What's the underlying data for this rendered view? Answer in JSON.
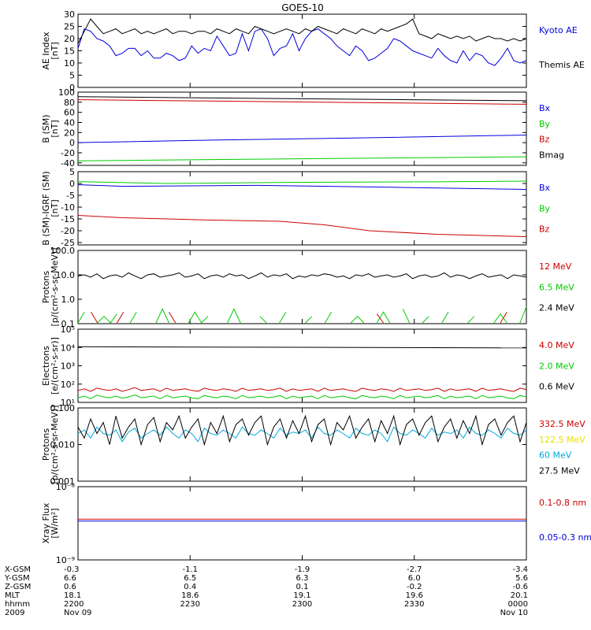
{
  "figure": {
    "title": "GOES-10"
  },
  "chart_data": [
    {
      "type": "line",
      "ylabel": [
        "AE Index",
        "[nT]"
      ],
      "ylim": [
        0,
        30
      ],
      "yticks": [
        "0",
        "5",
        "10",
        "15",
        "20",
        "25",
        "30"
      ],
      "series": [
        {
          "name": "Kyoto AE",
          "color": "#0000dd",
          "values": [
            16,
            24,
            23,
            20,
            19,
            17,
            13,
            14,
            16,
            16,
            13,
            15,
            12,
            12,
            14,
            13,
            11,
            12,
            17,
            14,
            16,
            15,
            21,
            17,
            13,
            14,
            22,
            15,
            23,
            24,
            20,
            13,
            16,
            17,
            22,
            15,
            20,
            23,
            24,
            22,
            20,
            17,
            15,
            13,
            17,
            15,
            11,
            12,
            14,
            16,
            20,
            19,
            17,
            15,
            14,
            13,
            12,
            16,
            13,
            11,
            10,
            15,
            11,
            14,
            13,
            10,
            9,
            12,
            16,
            11,
            10,
            11
          ]
        },
        {
          "name": "Themis AE",
          "color": "#000000",
          "values": [
            18,
            23,
            28,
            25,
            22,
            23,
            24,
            22,
            23,
            24,
            22,
            23,
            22,
            23,
            24,
            22,
            23,
            23,
            22,
            23,
            23,
            22,
            24,
            23,
            22,
            24,
            23,
            22,
            25,
            24,
            23,
            22,
            23,
            24,
            23,
            22,
            24,
            23,
            25,
            24,
            23,
            22,
            24,
            23,
            22,
            24,
            23,
            22,
            24,
            23,
            24,
            25,
            26,
            28,
            22,
            21,
            20,
            22,
            21,
            20,
            21,
            20,
            21,
            19,
            20,
            21,
            20,
            20,
            19,
            20,
            19,
            20
          ]
        }
      ]
    },
    {
      "type": "line",
      "ylabel": [
        "B (SM)",
        "[nT]"
      ],
      "ylim": [
        -45,
        100
      ],
      "yticks": [
        "-40",
        "-20",
        "0",
        "20",
        "40",
        "60",
        "80",
        "100"
      ],
      "series": [
        {
          "name": "Bx",
          "color": "#0000dd",
          "x": [
            0,
            30,
            60,
            100
          ],
          "values": [
            0,
            5,
            9,
            15
          ]
        },
        {
          "name": "By",
          "color": "#00cc00",
          "x": [
            0,
            100
          ],
          "values": [
            -36,
            -28
          ]
        },
        {
          "name": "Bz",
          "color": "#cc0000",
          "x": [
            0,
            100
          ],
          "values": [
            85,
            76
          ]
        },
        {
          "name": "Bmag",
          "color": "#000000",
          "x": [
            0,
            100
          ],
          "values": [
            91,
            83
          ]
        }
      ]
    },
    {
      "type": "line",
      "ylabel": [
        "B (SM)-IGRF (SM)",
        "[nT]"
      ],
      "ylim": [
        -26,
        5
      ],
      "yticks": [
        "-25",
        "-20",
        "-15",
        "-10",
        "-5",
        "0",
        "5"
      ],
      "series": [
        {
          "name": "Bx",
          "color": "#0000dd",
          "x": [
            0,
            10,
            40,
            70,
            100
          ],
          "values": [
            -0.5,
            -1.2,
            -0.8,
            -1.6,
            -2.5
          ]
        },
        {
          "name": "By",
          "color": "#00cc00",
          "x": [
            0,
            20,
            50,
            80,
            100
          ],
          "values": [
            0.8,
            0.0,
            0.5,
            0.7,
            1.0
          ]
        },
        {
          "name": "Bz",
          "color": "#cc0000",
          "x": [
            0,
            10,
            30,
            45,
            55,
            65,
            80,
            100
          ],
          "values": [
            -13.5,
            -14.5,
            -15.5,
            -16,
            -17.5,
            -20,
            -21.5,
            -22.5
          ]
        }
      ]
    },
    {
      "type": "line",
      "log": true,
      "ylabel": [
        "Protons",
        "[p/(cm²-s-sr-MeV)]"
      ],
      "ylim": [
        0.1,
        100
      ],
      "yticks": [
        "0.1",
        "1.0",
        "10.0",
        "100.0"
      ],
      "series": [
        {
          "name": "12 MeV",
          "color": "#cc0000",
          "values": [
            null,
            null,
            0.3,
            0.1,
            null,
            null,
            0.1,
            0.3,
            null,
            null,
            null,
            null,
            null,
            null,
            0.3,
            0.1,
            null,
            null,
            null,
            null,
            null,
            null,
            null,
            null,
            null,
            null,
            null,
            null,
            null,
            null,
            null,
            null,
            null,
            null,
            null,
            null,
            null,
            null,
            null,
            null,
            null,
            null,
            null,
            null,
            null,
            null,
            0.25,
            0.1,
            null,
            null,
            0.3,
            null,
            null,
            null,
            null,
            null,
            null,
            null,
            null,
            null,
            null,
            null,
            null,
            null,
            null,
            0.1,
            0.3,
            null,
            null,
            null
          ]
        },
        {
          "name": "6.5 MeV",
          "color": "#00cc00",
          "values": [
            0.1,
            0.3,
            null,
            0.1,
            0.2,
            0.1,
            0.25,
            null,
            0.1,
            0.3,
            null,
            null,
            0.1,
            0.4,
            0.1,
            null,
            null,
            0.1,
            0.3,
            0.1,
            0.2,
            null,
            null,
            0.1,
            0.4,
            0.1,
            null,
            null,
            0.2,
            0.1,
            null,
            0.1,
            0.3,
            null,
            null,
            0.1,
            0.2,
            null,
            0.1,
            0.3,
            null,
            null,
            0.1,
            0.2,
            0.1,
            null,
            0.1,
            0.3,
            0.1,
            null,
            0.4,
            0.1,
            null,
            0.1,
            0.2,
            null,
            0.1,
            0.3,
            null,
            null,
            0.1,
            0.2,
            null,
            null,
            0.1,
            0.25,
            0.1,
            null,
            0.1,
            0.5
          ]
        },
        {
          "name": "2.4 MeV",
          "color": "#000000",
          "values": [
            9,
            10,
            8,
            11,
            7,
            9,
            10,
            8,
            12,
            9,
            7,
            10,
            11,
            8,
            9,
            10,
            12,
            8,
            9,
            11,
            7,
            9,
            10,
            8,
            11,
            9,
            10,
            7,
            9,
            12,
            8,
            10,
            9,
            11,
            7,
            9,
            8,
            10,
            9,
            11,
            10,
            8,
            9,
            7,
            10,
            9,
            11,
            8,
            9,
            10,
            8,
            9,
            11,
            7,
            9,
            10,
            8,
            9,
            12,
            8,
            10,
            9,
            7,
            9,
            11,
            8,
            9,
            10,
            7,
            10,
            9,
            8
          ]
        }
      ]
    },
    {
      "type": "line",
      "log": true,
      "ylabel": [
        "Electrons",
        "[e/(cm²-s-sr)]"
      ],
      "ylim": [
        10,
        100000
      ],
      "yticks": [
        "10¹",
        "10²",
        "10³",
        "10⁴",
        "10⁵"
      ],
      "series": [
        {
          "name": "4.0 MeV",
          "color": "#cc0000",
          "values": [
            45,
            55,
            40,
            60,
            50,
            45,
            55,
            40,
            50,
            65,
            45,
            50,
            55,
            40,
            60,
            45,
            50,
            55,
            45,
            40,
            60,
            50,
            45,
            55,
            50,
            40,
            60,
            45,
            50,
            55,
            45,
            50,
            60,
            40,
            55,
            45,
            50,
            55,
            40,
            60,
            45,
            50,
            55,
            45,
            40,
            60,
            50,
            45,
            55,
            50,
            40,
            60,
            45,
            50,
            55,
            45,
            50,
            60,
            40,
            55,
            45,
            50,
            55,
            40,
            60,
            45,
            50,
            55,
            45,
            40,
            60,
            50
          ]
        },
        {
          "name": "2.0 MeV",
          "color": "#00cc00",
          "values": [
            18,
            22,
            16,
            25,
            20,
            18,
            22,
            17,
            20,
            26,
            18,
            20,
            22,
            16,
            24,
            18,
            20,
            22,
            18,
            16,
            24,
            20,
            18,
            22,
            20,
            16,
            24,
            18,
            20,
            22,
            18,
            20,
            24,
            16,
            22,
            18,
            20,
            22,
            16,
            24,
            18,
            20,
            22,
            18,
            16,
            24,
            20,
            18,
            22,
            20,
            16,
            24,
            18,
            20,
            22,
            18,
            20,
            24,
            16,
            22,
            18,
            20,
            22,
            16,
            24,
            18,
            20,
            22,
            18,
            16,
            24,
            20
          ]
        },
        {
          "name": "0.6 MeV",
          "color": "#000000",
          "x": [
            0,
            100
          ],
          "values": [
            11000,
            9500
          ]
        }
      ]
    },
    {
      "type": "line",
      "log": true,
      "ylabel": [
        "Protons",
        "[p/(cm²-s-sr-MeV)]"
      ],
      "ylim": [
        0.001,
        0.1
      ],
      "yticks": [
        "0.001",
        "0.010",
        "0.100"
      ],
      "series": [
        {
          "name": "332.5 MeV",
          "color": "#cc0000",
          "values": []
        },
        {
          "name": "122.5 MeV",
          "color": "#e8e000",
          "values": []
        },
        {
          "name": "60 MeV",
          "color": "#00aadd",
          "values": [
            0.02,
            0.025,
            0.015,
            0.03,
            0.02,
            0.018,
            0.025,
            0.012,
            0.022,
            0.028,
            0.015,
            0.02,
            0.025,
            0.018,
            0.03,
            0.02,
            0.015,
            0.025,
            0.02,
            0.012,
            0.028,
            0.02,
            0.018,
            0.025,
            0.02,
            0.015,
            0.03,
            0.02,
            0.018,
            0.025,
            0.02,
            0.015,
            0.028,
            0.018,
            0.022,
            0.02,
            0.025,
            0.015,
            0.03,
            0.02,
            0.018,
            0.025,
            0.02,
            0.015,
            0.028,
            0.02,
            0.018,
            0.025,
            0.02,
            0.012,
            0.03,
            0.02,
            0.018,
            0.025,
            0.02,
            0.015,
            0.028,
            0.018,
            0.022,
            0.02,
            0.025,
            0.015,
            0.03,
            0.02,
            0.018,
            0.025,
            0.02,
            0.015,
            0.028,
            0.02,
            0.018,
            0.025
          ]
        },
        {
          "name": "27.5 MeV",
          "color": "#000000",
          "values": [
            0.03,
            0.015,
            0.05,
            0.02,
            0.04,
            0.01,
            0.06,
            0.015,
            0.03,
            0.05,
            0.01,
            0.035,
            0.055,
            0.012,
            0.04,
            0.025,
            0.06,
            0.015,
            0.03,
            0.05,
            0.01,
            0.04,
            0.02,
            0.06,
            0.012,
            0.035,
            0.05,
            0.018,
            0.04,
            0.06,
            0.01,
            0.03,
            0.05,
            0.015,
            0.045,
            0.02,
            0.06,
            0.012,
            0.035,
            0.05,
            0.01,
            0.04,
            0.025,
            0.06,
            0.015,
            0.03,
            0.05,
            0.012,
            0.045,
            0.02,
            0.06,
            0.01,
            0.035,
            0.05,
            0.018,
            0.04,
            0.06,
            0.012,
            0.03,
            0.05,
            0.015,
            0.045,
            0.02,
            0.06,
            0.01,
            0.035,
            0.05,
            0.018,
            0.04,
            0.06,
            0.012,
            0.04
          ]
        }
      ]
    },
    {
      "type": "line",
      "log": true,
      "ylabel": [
        "Xray Flux",
        "[W/m²]"
      ],
      "ylim": [
        1e-09,
        1e-08
      ],
      "yticks": [
        "10⁻⁹",
        "10⁻⁸"
      ],
      "series": [
        {
          "name": "0.1-0.8 nm",
          "color": "#cc0000",
          "x": [
            0,
            100
          ],
          "values": [
            3.6e-09,
            3.6e-09
          ]
        },
        {
          "name": "0.05-0.3 nm",
          "color": "#0000dd",
          "x": [
            0,
            100
          ],
          "values": [
            3.4e-09,
            3.4e-09
          ]
        }
      ]
    }
  ],
  "time_axis": {
    "row_labels": [
      "X-GSM",
      "Y-GSM",
      "Z-GSM",
      "MLT",
      "hhmm",
      "2009"
    ],
    "ticks": [
      {
        "values": [
          "-0.3",
          "6.6",
          "0.6",
          "18.1",
          "2200",
          "Nov 09"
        ]
      },
      {
        "values": [
          "-1.1",
          "6.5",
          "0.4",
          "18.6",
          "2230",
          ""
        ]
      },
      {
        "values": [
          "-1.9",
          "6.3",
          "0.1",
          "19.1",
          "2300",
          ""
        ]
      },
      {
        "values": [
          "-2.7",
          "6.0",
          "-0.2",
          "19.6",
          "2330",
          ""
        ]
      },
      {
        "values": [
          "-3.4",
          "5.6",
          "-0.6",
          "20.1",
          "0000",
          "Nov 10"
        ]
      }
    ]
  }
}
